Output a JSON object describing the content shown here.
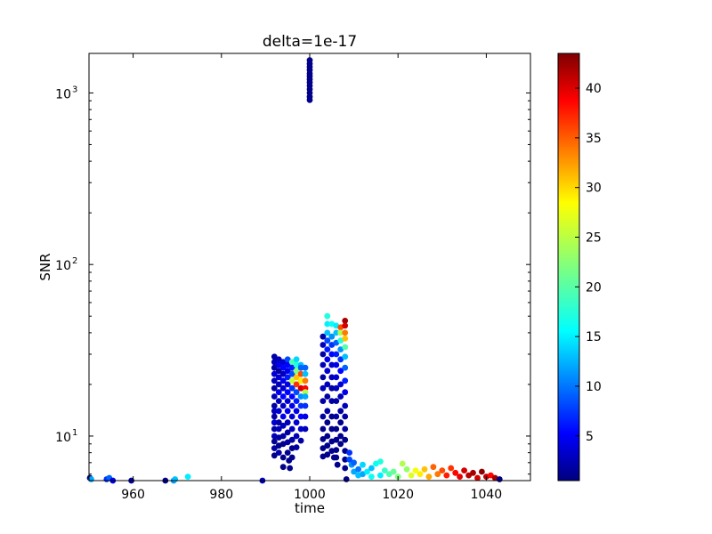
{
  "chart_data": {
    "type": "scatter",
    "title": "delta=1e-17",
    "xlabel": "time",
    "ylabel": "SNR",
    "xlim": [
      950,
      1050
    ],
    "ylim": [
      5.5,
      1700
    ],
    "yscale": "log",
    "xticks": [
      960,
      980,
      1000,
      1020,
      1040
    ],
    "xtick_labels": [
      "960",
      "980",
      "1000",
      "1020",
      "1040"
    ],
    "yticks": [
      10,
      100,
      1000
    ],
    "ytick_labels": [
      "10",
      "10",
      "10"
    ],
    "ytick_exponents": [
      "1",
      "2",
      "3"
    ],
    "colorbar": {
      "colormap": "jet",
      "range": [
        0.5,
        43.5
      ],
      "ticks": [
        5,
        10,
        15,
        20,
        25,
        30,
        35,
        40
      ],
      "tick_labels": [
        "5",
        "10",
        "15",
        "20",
        "25",
        "30",
        "35",
        "40"
      ]
    },
    "grid": false,
    "points": [
      [
        950.2,
        5.7,
        1
      ],
      [
        950.5,
        5.6,
        13
      ],
      [
        954,
        5.6,
        8
      ],
      [
        954.6,
        5.7,
        10
      ],
      [
        955.4,
        5.5,
        5
      ],
      [
        959.6,
        5.5,
        2
      ],
      [
        967.3,
        5.5,
        1
      ],
      [
        969.2,
        5.5,
        12
      ],
      [
        969.5,
        5.6,
        14
      ],
      [
        972.4,
        5.8,
        16
      ],
      [
        989.3,
        5.5,
        3
      ],
      [
        1000,
        1550,
        1
      ],
      [
        1000,
        1480,
        1
      ],
      [
        1000,
        1420,
        1
      ],
      [
        1000,
        1360,
        1
      ],
      [
        1000,
        1300,
        1
      ],
      [
        1000,
        1250,
        1
      ],
      [
        1000,
        1200,
        1
      ],
      [
        1000,
        1150,
        1
      ],
      [
        1000,
        1100,
        1
      ],
      [
        1000,
        1050,
        1
      ],
      [
        1000,
        1000,
        1
      ],
      [
        1000,
        950,
        1
      ],
      [
        1000,
        910,
        1
      ],
      [
        992,
        29,
        2
      ],
      [
        992,
        27,
        3
      ],
      [
        992,
        25,
        2
      ],
      [
        992,
        23,
        4
      ],
      [
        992,
        21,
        3
      ],
      [
        992,
        19,
        2
      ],
      [
        992,
        17,
        3
      ],
      [
        992,
        15,
        2
      ],
      [
        992,
        14,
        3
      ],
      [
        992,
        13,
        2
      ],
      [
        992,
        12,
        4
      ],
      [
        992,
        11,
        2
      ],
      [
        992,
        10,
        3
      ],
      [
        992,
        9.3,
        1
      ],
      [
        992,
        8.5,
        2
      ],
      [
        992,
        7.7,
        1
      ],
      [
        993,
        28,
        3
      ],
      [
        993,
        26,
        5
      ],
      [
        993,
        24,
        2
      ],
      [
        993,
        22,
        4
      ],
      [
        993,
        20,
        3
      ],
      [
        993,
        18,
        5
      ],
      [
        993,
        16,
        3
      ],
      [
        993,
        14,
        4
      ],
      [
        993,
        12,
        2
      ],
      [
        993,
        11,
        3
      ],
      [
        993,
        9.8,
        2
      ],
      [
        993,
        8.8,
        1
      ],
      [
        993,
        8,
        2
      ],
      [
        994,
        27,
        4
      ],
      [
        994,
        25,
        6
      ],
      [
        994,
        23,
        3
      ],
      [
        994,
        21,
        5
      ],
      [
        994,
        19,
        4
      ],
      [
        994,
        17,
        6
      ],
      [
        994,
        15,
        3
      ],
      [
        994,
        13,
        5
      ],
      [
        994,
        11.5,
        3
      ],
      [
        994,
        10,
        2
      ],
      [
        994,
        9,
        1
      ],
      [
        994,
        7.5,
        1
      ],
      [
        994,
        6.6,
        1
      ],
      [
        995,
        28,
        9
      ],
      [
        995,
        26,
        6
      ],
      [
        995,
        24,
        5
      ],
      [
        995,
        22,
        7
      ],
      [
        995,
        20,
        5
      ],
      [
        995,
        18,
        6
      ],
      [
        995,
        16,
        4
      ],
      [
        995,
        14,
        5
      ],
      [
        995,
        12,
        3
      ],
      [
        995,
        10.5,
        2
      ],
      [
        995,
        9.2,
        2
      ],
      [
        995,
        8,
        1
      ],
      [
        995.3,
        7.2,
        1
      ],
      [
        995.5,
        6.5,
        1
      ],
      [
        996,
        27,
        20
      ],
      [
        996,
        25,
        7
      ],
      [
        996,
        23,
        9
      ],
      [
        996,
        21,
        25
      ],
      [
        996,
        19,
        8
      ],
      [
        996,
        17,
        6
      ],
      [
        996,
        15,
        5
      ],
      [
        996,
        13,
        4
      ],
      [
        996,
        11,
        3
      ],
      [
        996,
        9.5,
        2
      ],
      [
        996,
        8.5,
        1
      ],
      [
        996,
        7.5,
        1
      ],
      [
        997,
        28,
        15
      ],
      [
        997,
        26,
        18
      ],
      [
        997,
        24,
        22
      ],
      [
        997,
        22,
        30
      ],
      [
        997,
        20,
        36
      ],
      [
        997,
        18,
        9
      ],
      [
        997,
        16,
        7
      ],
      [
        997,
        14,
        5
      ],
      [
        997,
        12,
        4
      ],
      [
        997,
        10,
        3
      ],
      [
        997,
        8.6,
        2
      ],
      [
        998,
        26,
        14
      ],
      [
        998,
        25,
        10
      ],
      [
        998,
        23,
        35
      ],
      [
        998,
        21,
        28
      ],
      [
        998,
        19,
        40
      ],
      [
        998,
        17,
        12
      ],
      [
        998,
        15,
        8
      ],
      [
        998,
        13,
        6
      ],
      [
        998,
        11,
        4
      ],
      [
        998,
        9.4,
        2
      ],
      [
        999,
        25,
        10
      ],
      [
        999,
        23,
        14
      ],
      [
        999,
        21,
        33
      ],
      [
        999,
        19,
        38
      ],
      [
        999,
        18,
        24
      ],
      [
        999,
        17,
        13
      ],
      [
        999,
        15,
        8
      ],
      [
        999,
        13,
        5
      ],
      [
        999,
        11,
        3
      ],
      [
        1003,
        38,
        2
      ],
      [
        1003,
        34,
        3
      ],
      [
        1003,
        30,
        2
      ],
      [
        1003,
        26,
        3
      ],
      [
        1003,
        22,
        2
      ],
      [
        1003,
        19,
        3
      ],
      [
        1003,
        16,
        2
      ],
      [
        1003,
        13,
        2
      ],
      [
        1003,
        11,
        1
      ],
      [
        1003,
        9.6,
        1
      ],
      [
        1003,
        8.5,
        1
      ],
      [
        1003,
        7.6,
        1
      ],
      [
        1004,
        50,
        18
      ],
      [
        1004,
        45,
        16
      ],
      [
        1004,
        40,
        14
      ],
      [
        1004,
        36,
        9
      ],
      [
        1004,
        32,
        7
      ],
      [
        1004,
        28,
        5
      ],
      [
        1004,
        24,
        4
      ],
      [
        1004,
        20,
        3
      ],
      [
        1004,
        17,
        2
      ],
      [
        1004,
        14,
        2
      ],
      [
        1004,
        12,
        1
      ],
      [
        1004,
        10,
        1
      ],
      [
        1004,
        8.8,
        1
      ],
      [
        1004,
        7.8,
        1
      ],
      [
        1005,
        45,
        17
      ],
      [
        1005,
        38,
        12
      ],
      [
        1005,
        34,
        8
      ],
      [
        1005,
        30,
        6
      ],
      [
        1005,
        26,
        4
      ],
      [
        1005,
        22,
        3
      ],
      [
        1005,
        19,
        2
      ],
      [
        1005,
        16,
        2
      ],
      [
        1005,
        13,
        1
      ],
      [
        1005,
        11,
        1
      ],
      [
        1005,
        9.3,
        1
      ],
      [
        1005,
        8.2,
        1
      ],
      [
        1005.5,
        7.5,
        1
      ],
      [
        1006,
        44,
        16
      ],
      [
        1006,
        40,
        14
      ],
      [
        1006,
        35,
        10
      ],
      [
        1006,
        30,
        7
      ],
      [
        1006,
        26,
        5
      ],
      [
        1006,
        22,
        4
      ],
      [
        1006,
        19,
        3
      ],
      [
        1006,
        16,
        2
      ],
      [
        1006,
        13,
        2
      ],
      [
        1006,
        11,
        1
      ],
      [
        1006,
        9.5,
        1
      ],
      [
        1006,
        8.3,
        1
      ],
      [
        1006,
        7.5,
        1
      ],
      [
        1006.3,
        6.8,
        1
      ],
      [
        1007,
        43,
        35
      ],
      [
        1007,
        40,
        24
      ],
      [
        1007,
        36,
        18
      ],
      [
        1007,
        32,
        12
      ],
      [
        1007,
        28,
        8
      ],
      [
        1007,
        24,
        6
      ],
      [
        1007,
        20,
        4
      ],
      [
        1007,
        17,
        3
      ],
      [
        1007,
        14,
        2
      ],
      [
        1007,
        12,
        1
      ],
      [
        1007,
        10,
        1
      ],
      [
        1007,
        9,
        1
      ],
      [
        1008,
        47,
        42
      ],
      [
        1008,
        44,
        40
      ],
      [
        1008,
        40,
        33
      ],
      [
        1008,
        37,
        30
      ],
      [
        1008,
        33,
        20
      ],
      [
        1008,
        29,
        14
      ],
      [
        1008,
        25,
        10
      ],
      [
        1008,
        21,
        7
      ],
      [
        1008,
        18,
        5
      ],
      [
        1008,
        15,
        3
      ],
      [
        1008,
        13,
        2
      ],
      [
        1008,
        11,
        2
      ],
      [
        1008,
        9.5,
        1
      ],
      [
        1008,
        8.2,
        1
      ],
      [
        1008,
        7.3,
        1
      ],
      [
        1008,
        6.5,
        1
      ],
      [
        1008.3,
        5.6,
        1
      ],
      [
        1009,
        8,
        8
      ],
      [
        1009,
        7.3,
        9
      ],
      [
        1009.5,
        6.8,
        12
      ],
      [
        1010,
        7,
        10
      ],
      [
        1010,
        6.2,
        13
      ],
      [
        1011,
        6.4,
        11
      ],
      [
        1011,
        5.9,
        14
      ],
      [
        1012,
        6.8,
        15
      ],
      [
        1012,
        6,
        13
      ],
      [
        1013,
        6.2,
        16
      ],
      [
        1014,
        6.5,
        14
      ],
      [
        1014,
        5.8,
        17
      ],
      [
        1015,
        6.9,
        17
      ],
      [
        1016,
        7.1,
        18
      ],
      [
        1016,
        5.9,
        16
      ],
      [
        1017,
        6.3,
        19
      ],
      [
        1018,
        6,
        20
      ],
      [
        1019,
        6.2,
        21
      ],
      [
        1020,
        5.8,
        22
      ],
      [
        1021,
        6.9,
        24
      ],
      [
        1022,
        6.4,
        23
      ],
      [
        1023,
        5.9,
        26
      ],
      [
        1024,
        6.3,
        27
      ],
      [
        1025,
        6,
        28
      ],
      [
        1026,
        6.4,
        30
      ],
      [
        1027,
        5.8,
        31
      ],
      [
        1028,
        6.6,
        34
      ],
      [
        1029,
        6,
        33
      ],
      [
        1030,
        6.3,
        35
      ],
      [
        1031,
        5.9,
        37
      ],
      [
        1032,
        6.5,
        36
      ],
      [
        1033,
        6.1,
        38
      ],
      [
        1034,
        5.8,
        39
      ],
      [
        1035,
        6.3,
        40
      ],
      [
        1036,
        5.9,
        41
      ],
      [
        1037,
        6.1,
        42
      ],
      [
        1038,
        5.7,
        40
      ],
      [
        1039,
        6.2,
        43
      ],
      [
        1040,
        5.8,
        41
      ],
      [
        1041,
        5.9,
        38
      ],
      [
        1042,
        5.7,
        42
      ],
      [
        1043,
        5.6,
        1
      ]
    ]
  }
}
